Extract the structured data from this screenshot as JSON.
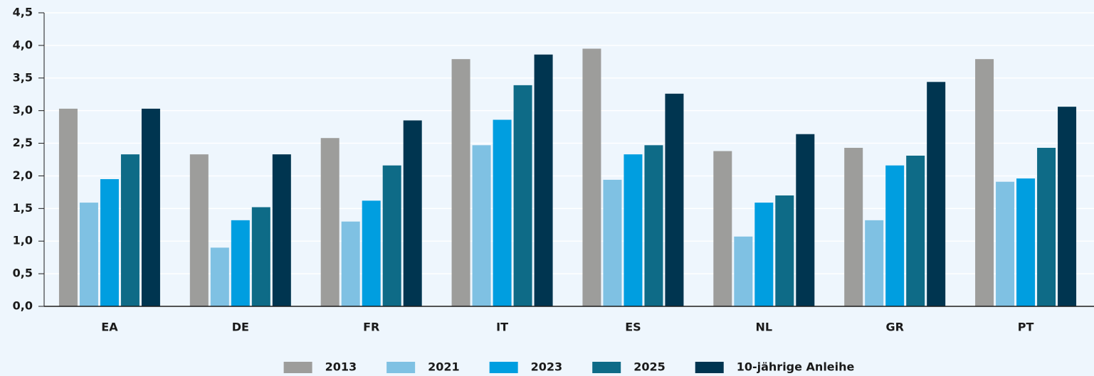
{
  "chart_data": {
    "type": "bar",
    "categories": [
      "EA",
      "DE",
      "FR",
      "IT",
      "ES",
      "NL",
      "GR",
      "PT"
    ],
    "series": [
      {
        "name": "2013",
        "color": "#9d9d9b",
        "values": [
          3.03,
          2.33,
          2.58,
          3.79,
          3.95,
          2.38,
          2.43,
          3.79
        ]
      },
      {
        "name": "2021",
        "color": "#7fc1e3",
        "values": [
          1.59,
          0.9,
          1.3,
          2.47,
          1.94,
          1.07,
          1.32,
          1.91
        ]
      },
      {
        "name": "2023",
        "color": "#009ee0",
        "values": [
          1.95,
          1.32,
          1.62,
          2.86,
          2.33,
          1.59,
          2.16,
          1.96
        ]
      },
      {
        "name": "2025",
        "color": "#0e6b87",
        "values": [
          2.33,
          1.52,
          2.16,
          3.39,
          2.47,
          1.7,
          2.31,
          2.43
        ]
      },
      {
        "name": "10-jährige Anleihe",
        "color": "#003550",
        "values": [
          3.03,
          2.33,
          2.85,
          3.86,
          3.26,
          2.64,
          3.44,
          3.06
        ]
      }
    ],
    "ylim": [
      0,
      4.5
    ],
    "yticks": [
      {
        "value": 0,
        "label": "0,0"
      },
      {
        "value": 0.5,
        "label": "0,5"
      },
      {
        "value": 1,
        "label": "1,0"
      },
      {
        "value": 1.5,
        "label": "1,5"
      },
      {
        "value": 2,
        "label": "2,0"
      },
      {
        "value": 2.5,
        "label": "2,5"
      },
      {
        "value": 3,
        "label": "3,0"
      },
      {
        "value": 3.5,
        "label": "3,5"
      },
      {
        "value": 4,
        "label": "4,0"
      },
      {
        "value": 4.5,
        "label": "4,5"
      }
    ],
    "grid": true,
    "legend": "bottom"
  }
}
